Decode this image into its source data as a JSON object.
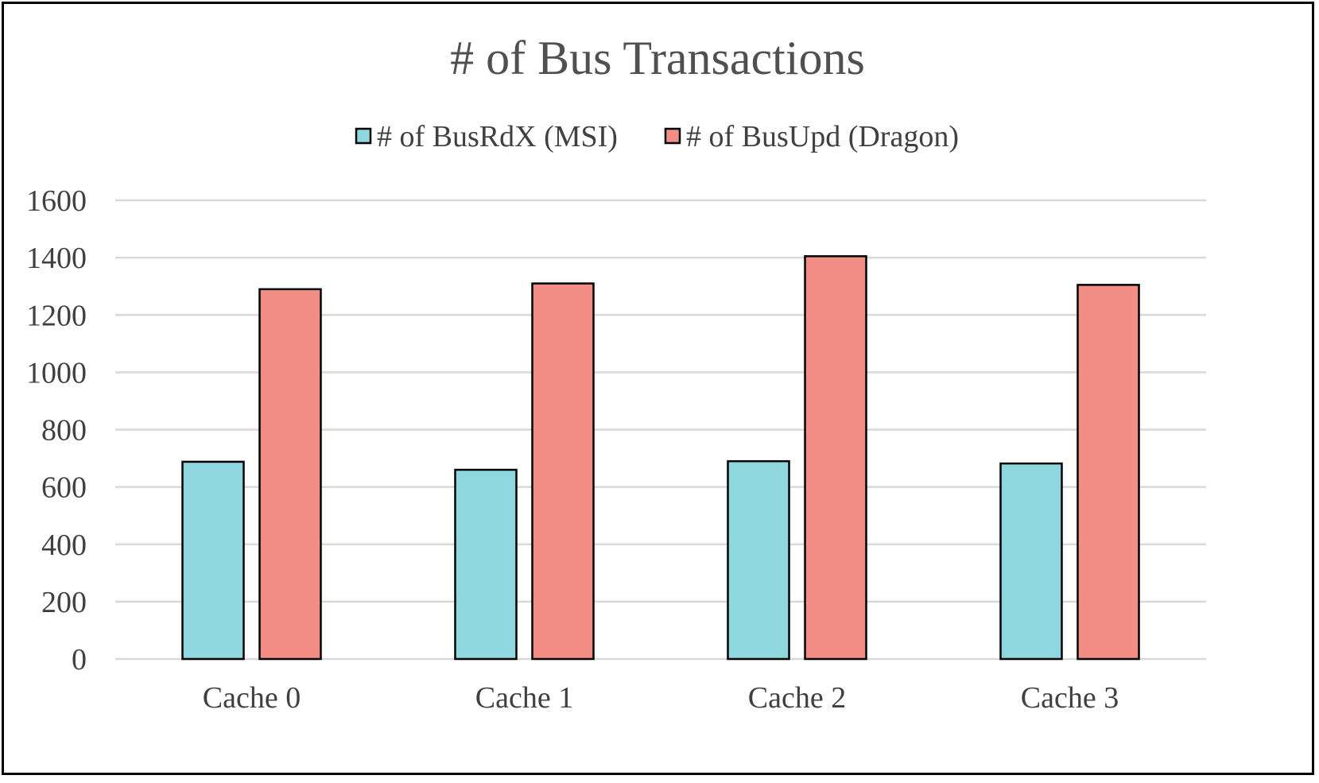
{
  "chart_data": {
    "type": "bar",
    "title": "# of Bus Transactions",
    "categories": [
      "Cache 0",
      "Cache 1",
      "Cache 2",
      "Cache 3"
    ],
    "series": [
      {
        "name": "# of BusRdX (MSI)",
        "color": "#8fd7de",
        "values": [
          688,
          660,
          690,
          682
        ]
      },
      {
        "name": "# of BusUpd (Dragon)",
        "color": "#f28e86",
        "values": [
          1290,
          1310,
          1405,
          1305
        ]
      }
    ],
    "yticks": [
      "0",
      "200",
      "400",
      "600",
      "800",
      "1000",
      "1200",
      "1400",
      "1600"
    ],
    "ylim": [
      0,
      1600
    ],
    "grid": true,
    "legend_position": "top",
    "xlabel": "",
    "ylabel": ""
  }
}
